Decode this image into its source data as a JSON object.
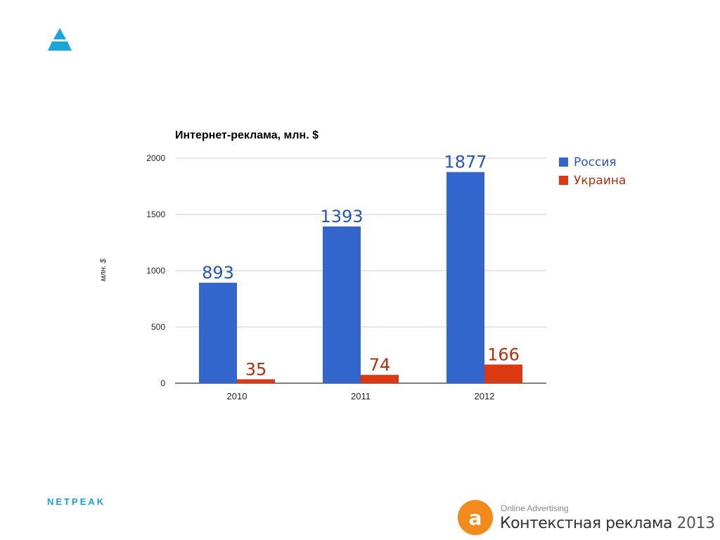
{
  "chart_data": {
    "type": "bar",
    "title": "Интернет-реклама, млн. $",
    "ylabel": "млн. $",
    "xlabel": "",
    "categories": [
      "2010",
      "2011",
      "2012"
    ],
    "ylim": [
      0,
      2000
    ],
    "yticks": [
      0,
      500,
      1000,
      1500,
      2000
    ],
    "grid": true,
    "legend_position": "right",
    "series": [
      {
        "name": "Россия",
        "values": [
          893,
          1393,
          1877
        ],
        "color": "#3366cc",
        "label_color": "#2a56b0"
      },
      {
        "name": "Украина",
        "values": [
          35,
          74,
          166
        ],
        "color": "#dc3912",
        "label_color": "#b03010"
      }
    ]
  },
  "footer": {
    "brand": "NETPEAK",
    "event_subtitle": "Online Advertising",
    "event_title": "Контекстная реклама",
    "event_year": "2013"
  },
  "icons": {
    "top_logo": "triangle-logo-icon",
    "event_logo": "orange-a-logo-icon",
    "top_logo_color": "#1aa6d9",
    "event_logo_color": "#f28a1c"
  }
}
